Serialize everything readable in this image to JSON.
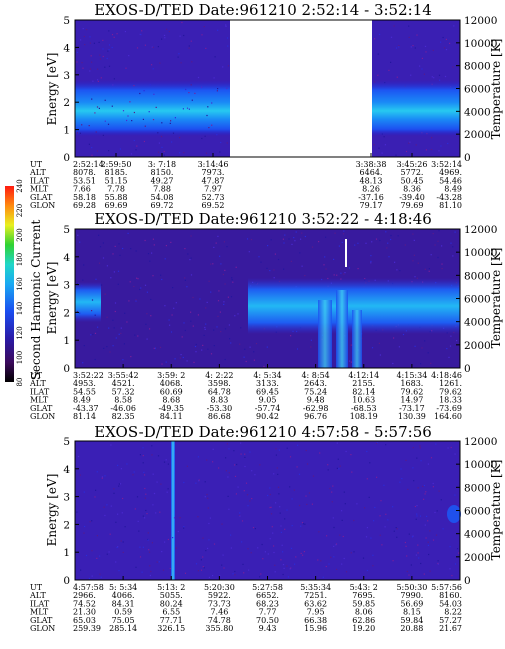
{
  "figure": {
    "colorbar": {
      "label": "Second Harmonic Current",
      "ticks": [
        "80",
        "100",
        "120",
        "140",
        "160",
        "180",
        "200",
        "220",
        "240"
      ]
    }
  },
  "chart_data": [
    {
      "type": "heatmap",
      "title": "EXOS-D/TED   Date:961210  2:52:14 - 3:52:14",
      "ylabel": "Energy [eV]",
      "y2label": "Temperature [K]",
      "ylim": [
        0,
        5
      ],
      "y2lim": [
        0,
        12000
      ],
      "yticks": [
        "0",
        "1",
        "2",
        "3",
        "4",
        "5"
      ],
      "y2ticks": [
        "0",
        "2000",
        "4000",
        "6000",
        "8000",
        "10000",
        "12000"
      ],
      "gap_label": "no data between 3:14:46 and 3:38:38",
      "ephemeris": {
        "row_labels": [
          "UT",
          "ALT",
          "ILAT",
          "MLT",
          "GLAT",
          "GLON"
        ],
        "columns": [
          {
            "UT": "2:52:14",
            "ALT": "8078.",
            "ILAT": "53.51",
            "MLT": "7.66",
            "GLAT": "58.18",
            "GLON": "69.28"
          },
          {
            "UT": "2:59:50",
            "ALT": "8185.",
            "ILAT": "51.15",
            "MLT": "7.78",
            "GLAT": "55.88",
            "GLON": "69.69"
          },
          {
            "UT": "3: 7:18",
            "ALT": "8150.",
            "ILAT": "49.27",
            "MLT": "7.88",
            "GLAT": "54.08",
            "GLON": "69.72"
          },
          {
            "UT": "3:14:46",
            "ALT": "7973.",
            "ILAT": "47.87",
            "MLT": "7.97",
            "GLAT": "52.73",
            "GLON": "69.52"
          },
          {
            "UT": "3:38:38",
            "ALT": "6464.",
            "ILAT": "48.13",
            "MLT": "8.26",
            "GLAT": "-37.16",
            "GLON": "79.17"
          },
          {
            "UT": "3:45:26",
            "ALT": "5772.",
            "ILAT": "50.45",
            "MLT": "8.36",
            "GLAT": "-39.40",
            "GLON": "79.69"
          },
          {
            "UT": "3:52:14",
            "ALT": "4969.",
            "ILAT": "54.46",
            "MLT": "8.49",
            "GLAT": "-43.28",
            "GLON": "81.10"
          }
        ]
      }
    },
    {
      "type": "heatmap",
      "title": "EXOS-D/TED   Date:961210  3:52:22 - 4:18:46",
      "ylabel": "Energy [eV]",
      "y2label": "Temperature [K]",
      "ylim": [
        0,
        5
      ],
      "y2lim": [
        0,
        12000
      ],
      "yticks": [
        "0",
        "1",
        "2",
        "3",
        "4",
        "5"
      ],
      "y2ticks": [
        "0",
        "2000",
        "4000",
        "6000",
        "8000",
        "10000",
        "12000"
      ],
      "ephemeris": {
        "row_labels": [
          "UT",
          "ALT",
          "ILAT",
          "MLT",
          "GLAT",
          "GLON"
        ],
        "columns": [
          {
            "UT": "3:52:22",
            "ALT": "4953.",
            "ILAT": "54.55",
            "MLT": "8.49",
            "GLAT": "-43.37",
            "GLON": "81.14"
          },
          {
            "UT": "3:55:42",
            "ALT": "4521.",
            "ILAT": "57.32",
            "MLT": "8.58",
            "GLAT": "-46.06",
            "GLON": "82.35"
          },
          {
            "UT": "3:59: 2",
            "ALT": "4068.",
            "ILAT": "60.69",
            "MLT": "8.68",
            "GLAT": "-49.35",
            "GLON": "84.11"
          },
          {
            "UT": "4: 2:22",
            "ALT": "3598.",
            "ILAT": "64.78",
            "MLT": "8.83",
            "GLAT": "-53.30",
            "GLON": "86.68"
          },
          {
            "UT": "4: 5:34",
            "ALT": "3133.",
            "ILAT": "69.45",
            "MLT": "9.05",
            "GLAT": "-57.74",
            "GLON": "90.42"
          },
          {
            "UT": "4: 8:54",
            "ALT": "2643.",
            "ILAT": "75.24",
            "MLT": "9.48",
            "GLAT": "-62.98",
            "GLON": "96.76"
          },
          {
            "UT": "4:12:14",
            "ALT": "2155.",
            "ILAT": "82.14",
            "MLT": "10.63",
            "GLAT": "-68.53",
            "GLON": "108.19"
          },
          {
            "UT": "4:15:34",
            "ALT": "1683.",
            "ILAT": "79.62",
            "MLT": "14.97",
            "GLAT": "-73.17",
            "GLON": "130.39"
          },
          {
            "UT": "4:18:46",
            "ALT": "1261.",
            "ILAT": "79.62",
            "MLT": "18.33",
            "GLAT": "-73.69",
            "GLON": "164.60"
          }
        ]
      }
    },
    {
      "type": "heatmap",
      "title": "EXOS-D/TED   Date:961210  4:57:58 - 5:57:56",
      "ylabel": "Energy [eV]",
      "y2label": "Temperature [K]",
      "ylim": [
        0,
        5
      ],
      "y2lim": [
        0,
        12000
      ],
      "yticks": [
        "0",
        "1",
        "2",
        "3",
        "4",
        "5"
      ],
      "y2ticks": [
        "0",
        "2000",
        "4000",
        "6000",
        "8000",
        "10000",
        "12000"
      ],
      "ephemeris": {
        "row_labels": [
          "UT",
          "ALT",
          "ILAT",
          "MLT",
          "GLAT",
          "GLON"
        ],
        "columns": [
          {
            "UT": "4:57:58",
            "ALT": "2966.",
            "ILAT": "74.52",
            "MLT": "21.30",
            "GLAT": "65.03",
            "GLON": "259.39"
          },
          {
            "UT": "5: 5:34",
            "ALT": "4066.",
            "ILAT": "84.31",
            "MLT": "0.59",
            "GLAT": "75.05",
            "GLON": "285.14"
          },
          {
            "UT": "5:13: 2",
            "ALT": "5055.",
            "ILAT": "80.24",
            "MLT": "6.55",
            "GLAT": "77.71",
            "GLON": "326.15"
          },
          {
            "UT": "5:20:30",
            "ALT": "5922.",
            "ILAT": "73.73",
            "MLT": "7.46",
            "GLAT": "74.78",
            "GLON": "355.80"
          },
          {
            "UT": "5:27:58",
            "ALT": "6652.",
            "ILAT": "68.23",
            "MLT": "7.77",
            "GLAT": "70.50",
            "GLON": "9.43"
          },
          {
            "UT": "5:35:34",
            "ALT": "7251.",
            "ILAT": "63.62",
            "MLT": "7.95",
            "GLAT": "66.38",
            "GLON": "15.96"
          },
          {
            "UT": "5:43: 2",
            "ALT": "7695.",
            "ILAT": "59.85",
            "MLT": "8.06",
            "GLAT": "62.86",
            "GLON": "19.20"
          },
          {
            "UT": "5:50:30",
            "ALT": "7990.",
            "ILAT": "56.69",
            "MLT": "8.15",
            "GLAT": "59.84",
            "GLON": "20.88"
          },
          {
            "UT": "5:57:56",
            "ALT": "8160.",
            "ILAT": "54.03",
            "MLT": "8.22",
            "GLAT": "57.27",
            "GLON": "21.67"
          }
        ]
      }
    }
  ]
}
